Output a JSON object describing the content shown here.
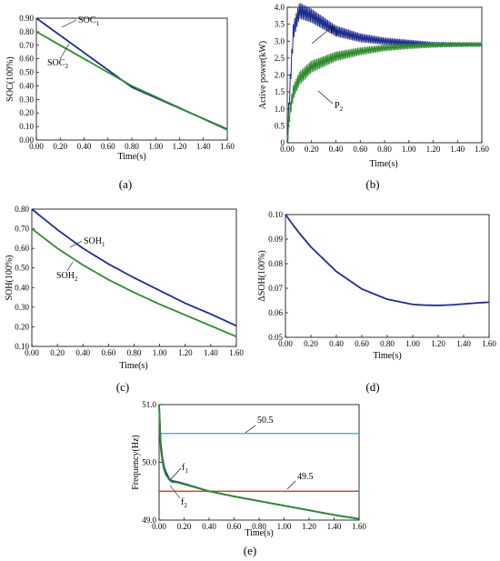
{
  "colors": {
    "blue": "#1f2d8e",
    "green": "#2e8b2e",
    "cyan": "#4aa3b3",
    "red": "#c0282d"
  },
  "panels": {
    "a": {
      "label": "(a)"
    },
    "b": {
      "label": "(b)"
    },
    "c": {
      "label": "(c)"
    },
    "d": {
      "label": "(d)"
    },
    "e": {
      "label": "(e)"
    }
  },
  "chart_data": [
    {
      "id": "a",
      "type": "line",
      "xlabel": "Time(s)",
      "ylabel": "SOC(100%)",
      "xlim": [
        0,
        1.6
      ],
      "ylim": [
        0,
        0.9
      ],
      "xticks": [
        "0.00",
        "0.20",
        "0.40",
        "0.60",
        "0.80",
        "1.00",
        "1.20",
        "1.40",
        "1.60"
      ],
      "yticks": [
        "0.00",
        "0.10",
        "0.20",
        "0.30",
        "0.40",
        "0.50",
        "0.60",
        "0.70",
        "0.80",
        "0.90"
      ],
      "series": [
        {
          "name": "SOC1",
          "label_main": "SOC",
          "label_sub": "1",
          "color": "blue",
          "x": [
            0,
            0.8,
            1.6
          ],
          "y": [
            0.9,
            0.39,
            0.08
          ]
        },
        {
          "name": "SOC2",
          "label_main": "SOC",
          "label_sub": "2",
          "color": "green",
          "x": [
            0,
            0.8,
            1.6
          ],
          "y": [
            0.8,
            0.4,
            0.075
          ]
        }
      ]
    },
    {
      "id": "b",
      "type": "line",
      "xlabel": "Time(s)",
      "ylabel": "Active power(kW)",
      "xlim": [
        0,
        1.6
      ],
      "ylim": [
        0,
        4.0
      ],
      "xticks": [
        "0.00",
        "0.20",
        "0.40",
        "0.60",
        "0.80",
        "1.00",
        "1.20",
        "1.40",
        "1.60"
      ],
      "yticks": [
        "0",
        "0.5",
        "1.0",
        "1.5",
        "2.0",
        "2.5",
        "3.0",
        "3.5",
        "4.0"
      ],
      "series": [
        {
          "name": "P1",
          "label_main": "P",
          "label_sub": "1",
          "color": "blue",
          "x": [
            0,
            0.02,
            0.05,
            0.1,
            0.2,
            0.4,
            0.6,
            0.8,
            1.0,
            1.2,
            1.4,
            1.6
          ],
          "y": [
            0,
            1.5,
            3.3,
            3.9,
            3.75,
            3.3,
            3.1,
            3.0,
            2.95,
            2.9,
            2.9,
            2.9
          ]
        },
        {
          "name": "P2",
          "label_main": "P",
          "label_sub": "2",
          "color": "green",
          "x": [
            0,
            0.02,
            0.05,
            0.1,
            0.2,
            0.4,
            0.6,
            0.8,
            1.0,
            1.2,
            1.4,
            1.6
          ],
          "y": [
            0,
            0.9,
            1.5,
            1.9,
            2.25,
            2.55,
            2.7,
            2.8,
            2.85,
            2.88,
            2.9,
            2.9
          ]
        }
      ]
    },
    {
      "id": "c",
      "type": "line",
      "xlabel": "Time(s)",
      "ylabel": "SOH(100%)",
      "xlim": [
        0,
        1.6
      ],
      "ylim": [
        0.1,
        0.8
      ],
      "xticks": [
        "0.00",
        "0.20",
        "0.40",
        "0.60",
        "0.80",
        "1.00",
        "1.20",
        "1.40",
        "1.60"
      ],
      "yticks": [
        "0.10",
        "0.20",
        "0.30",
        "0.40",
        "0.50",
        "0.60",
        "0.70",
        "0.80"
      ],
      "series": [
        {
          "name": "SOH1",
          "label_main": "SOH",
          "label_sub": "1",
          "color": "blue",
          "x": [
            0,
            0.2,
            0.4,
            0.6,
            0.8,
            1.0,
            1.2,
            1.4,
            1.6
          ],
          "y": [
            0.8,
            0.695,
            0.6,
            0.52,
            0.45,
            0.385,
            0.32,
            0.265,
            0.205
          ]
        },
        {
          "name": "SOH2",
          "label_main": "SOH",
          "label_sub": "2",
          "color": "green",
          "x": [
            0,
            0.2,
            0.4,
            0.6,
            0.8,
            1.0,
            1.2,
            1.4,
            1.6
          ],
          "y": [
            0.7,
            0.6,
            0.515,
            0.44,
            0.375,
            0.315,
            0.26,
            0.205,
            0.15
          ]
        }
      ]
    },
    {
      "id": "d",
      "type": "line",
      "xlabel": "Time(s)",
      "ylabel": "ΔSOH(100%)",
      "xlim": [
        0,
        1.6
      ],
      "ylim": [
        0.05,
        0.1
      ],
      "xticks": [
        "0.00",
        "0.20",
        "0.40",
        "0.60",
        "0.80",
        "1.00",
        "1.20",
        "1.40",
        "1.60"
      ],
      "yticks": [
        "0.05",
        "0.06",
        "0.07",
        "0.08",
        "0.09",
        "0.10"
      ],
      "series": [
        {
          "name": "ΔSOH",
          "color": "blue",
          "x": [
            0,
            0.1,
            0.2,
            0.4,
            0.6,
            0.8,
            1.0,
            1.1,
            1.2,
            1.3,
            1.4,
            1.5,
            1.6
          ],
          "y": [
            0.1,
            0.093,
            0.0868,
            0.0768,
            0.0697,
            0.0655,
            0.0634,
            0.0631,
            0.063,
            0.0632,
            0.0636,
            0.064,
            0.0643
          ]
        }
      ]
    },
    {
      "id": "e",
      "type": "line",
      "xlabel": "Time(s)",
      "ylabel": "Frequency(Hz)",
      "xlim": [
        0,
        1.6
      ],
      "ylim": [
        49.0,
        51.0
      ],
      "xticks": [
        "0.00",
        "0.20",
        "0.40",
        "0.60",
        "0.80",
        "1.00",
        "1.20",
        "1.40",
        "1.60"
      ],
      "yticks": [
        "49.0",
        "50.0",
        "51.0"
      ],
      "series": [
        {
          "name": "f1",
          "label_main": "f",
          "label_sub": "1",
          "color": "blue",
          "x": [
            0,
            0.01,
            0.03,
            0.05,
            0.08,
            0.1,
            0.15,
            0.2,
            0.4,
            0.6,
            0.8,
            1.0,
            1.2,
            1.4,
            1.6
          ],
          "y": [
            51.0,
            50.4,
            50.0,
            49.85,
            49.72,
            49.68,
            49.66,
            49.63,
            49.5,
            49.41,
            49.33,
            49.25,
            49.17,
            49.09,
            49.02
          ]
        },
        {
          "name": "f2",
          "label_main": "f",
          "label_sub": "2",
          "color": "green",
          "x": [
            0,
            0.01,
            0.03,
            0.05,
            0.08,
            0.1,
            0.15,
            0.2,
            0.4,
            0.6,
            0.8,
            1.0,
            1.2,
            1.4,
            1.6
          ],
          "y": [
            51.0,
            50.3,
            49.95,
            49.8,
            49.7,
            49.66,
            49.65,
            49.62,
            49.5,
            49.41,
            49.33,
            49.25,
            49.17,
            49.09,
            49.02
          ]
        }
      ],
      "hlines": [
        {
          "y": 50.5,
          "label": "50.5",
          "color": "cyan"
        },
        {
          "y": 49.5,
          "label": "49.5",
          "color": "red"
        }
      ]
    }
  ]
}
